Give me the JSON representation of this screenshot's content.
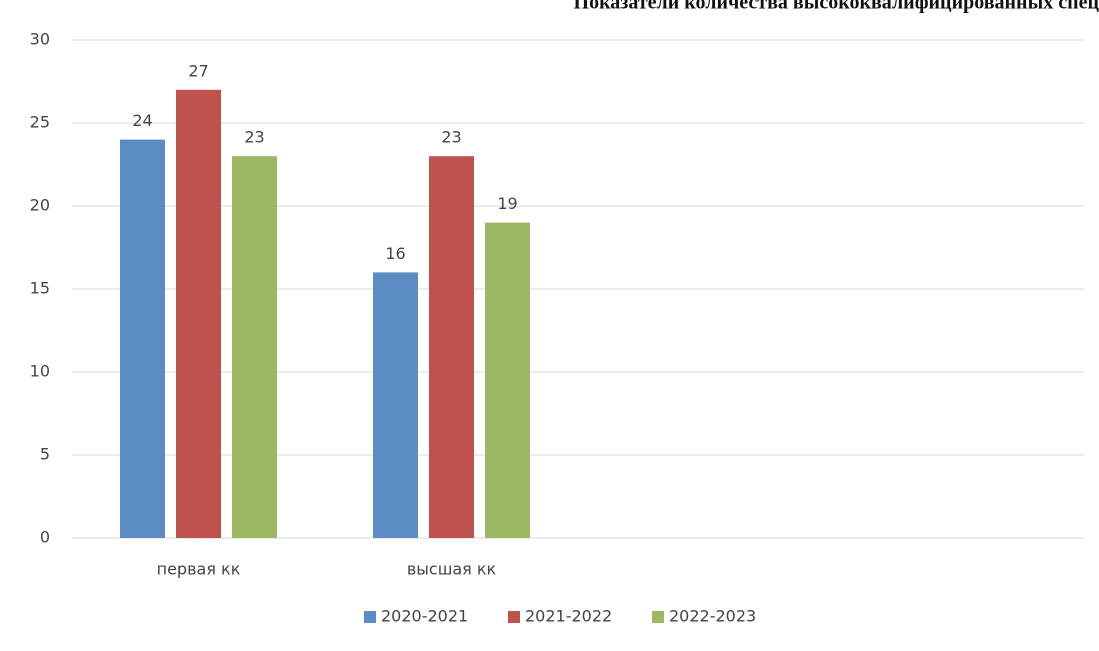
{
  "chart_data": {
    "type": "bar",
    "title": "Показатели количества высококвалифицированных спец",
    "categories": [
      "первая кк",
      "высшая кк",
      null,
      null
    ],
    "series": [
      {
        "name": "2020-2021",
        "color": "#5b8cc4",
        "values": [
          24,
          16,
          null,
          null
        ]
      },
      {
        "name": "2021-2022",
        "color": "#c0524e",
        "values": [
          27,
          23,
          null,
          null
        ]
      },
      {
        "name": "2022-2023",
        "color": "#9cb862",
        "values": [
          23,
          19,
          null,
          null
        ]
      }
    ],
    "ylim": [
      0,
      30
    ],
    "yticks": [
      0,
      5,
      10,
      15,
      20,
      25,
      30
    ],
    "grid": true,
    "legend": "bottom"
  }
}
